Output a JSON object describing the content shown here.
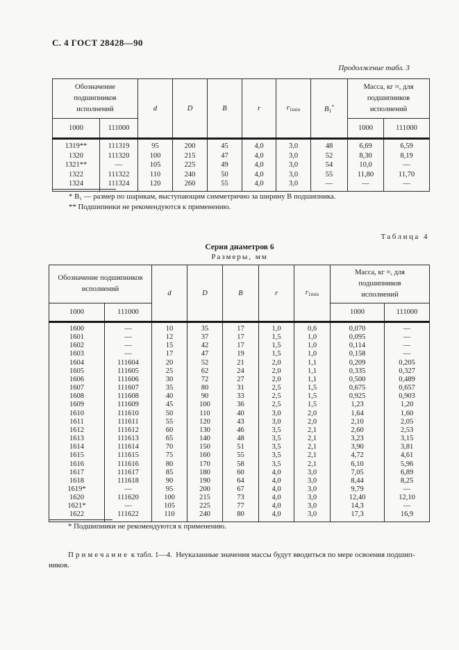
{
  "page": {
    "header": "С. 4 ГОСТ 28428—90"
  },
  "table3": {
    "caption": "Продолжение табл. 3",
    "designation_group": "Обозначение\nподшипников\nисполнений",
    "mass_group": "Масса, кг ≈, для\nподшипников\nисполнений",
    "subcols": [
      "1000",
      "111000"
    ],
    "mass_subcols": [
      "1000",
      "111000"
    ],
    "cols": {
      "d": "d",
      "D": "D",
      "B": "B",
      "r": "r",
      "rmin_base": "r",
      "rmin_sub": "1min",
      "b1_base": "B",
      "b1_sub": "1",
      "b1_sup": "*"
    },
    "rows": [
      [
        "1319**",
        "111319",
        "95",
        "200",
        "45",
        "4,0",
        "3,0",
        "48",
        "6,69",
        "6,59"
      ],
      [
        "1320",
        "111320",
        "100",
        "215",
        "47",
        "4,0",
        "3,0",
        "52",
        "8,30",
        "8,19"
      ],
      [
        "1321**",
        "—",
        "105",
        "225",
        "49",
        "4,0",
        "3,0",
        "54",
        "10,0",
        "—"
      ],
      [
        "1322",
        "111322",
        "110",
        "240",
        "50",
        "4,0",
        "3,0",
        "55",
        "11,80",
        "11,70"
      ],
      [
        "1324",
        "111324",
        "120",
        "260",
        "55",
        "4,0",
        "3,0",
        "—",
        "—",
        "—"
      ]
    ],
    "footnotes": [
      "* B₁ — размер по шарикам, выступающим симметрично за ширину B подшипника.",
      "** Подшипники не рекомендуются к применению."
    ]
  },
  "table4": {
    "label": "Таблица 4",
    "series": "Серия диаметров 6",
    "sizes": "Размеры, мм",
    "designation_group": "Обозначение подшипников\nисполнений",
    "mass_group": "Масса, кг ≈, для\nподшипников\nисполнений",
    "subcols": [
      "1000",
      "111000"
    ],
    "mass_subcols": [
      "1000",
      "111000"
    ],
    "cols": {
      "d": "d",
      "D": "D",
      "B": "B",
      "r": "r",
      "rmin_base": "r",
      "rmin_sub": "1min"
    },
    "rows": [
      [
        "1600",
        "—",
        "10",
        "35",
        "17",
        "1,0",
        "0,6",
        "0,070",
        "—"
      ],
      [
        "1601",
        "—",
        "12",
        "37",
        "17",
        "1,5",
        "1,0",
        "0,095",
        "—"
      ],
      [
        "1602",
        "—",
        "15",
        "42",
        "17",
        "1,5",
        "1,0",
        "0,114",
        "—"
      ],
      [
        "1603",
        "—",
        "17",
        "47",
        "19",
        "1,5",
        "1,0",
        "0,158",
        "—"
      ],
      [
        "1604",
        "111604",
        "20",
        "52",
        "21",
        "2,0",
        "1,1",
        "0,209",
        "0,205"
      ],
      [
        "1605",
        "111605",
        "25",
        "62",
        "24",
        "2,0",
        "1,1",
        "0,335",
        "0,327"
      ],
      [
        "1606",
        "111606",
        "30",
        "72",
        "27",
        "2,0",
        "1,1",
        "0,500",
        "0,489"
      ],
      [
        "1607",
        "111607",
        "35",
        "80",
        "31",
        "2,5",
        "1,5",
        "0,675",
        "0,657"
      ],
      [
        "1608",
        "111608",
        "40",
        "90",
        "33",
        "2,5",
        "1,5",
        "0,925",
        "0,903"
      ],
      [
        "1609",
        "111609",
        "45",
        "100",
        "36",
        "2,5",
        "1,5",
        "1,23",
        "1,20"
      ],
      [
        "1610",
        "111610",
        "50",
        "110",
        "40",
        "3,0",
        "2,0",
        "1,64",
        "1,60"
      ],
      [
        "1611",
        "111611",
        "55",
        "120",
        "43",
        "3,0",
        "2,0",
        "2,10",
        "2,05"
      ],
      [
        "1612",
        "111612",
        "60",
        "130",
        "46",
        "3,5",
        "2,1",
        "2,60",
        "2,53"
      ],
      [
        "1613",
        "111613",
        "65",
        "140",
        "48",
        "3,5",
        "2,1",
        "3,23",
        "3,15"
      ],
      [
        "1614",
        "111614",
        "70",
        "150",
        "51",
        "3,5",
        "2,1",
        "3,90",
        "3,81"
      ],
      [
        "1615",
        "111615",
        "75",
        "160",
        "55",
        "3,5",
        "2,1",
        "4,72",
        "4,61"
      ],
      [
        "1616",
        "111616",
        "80",
        "170",
        "58",
        "3,5",
        "2,1",
        "6,10",
        "5,96"
      ],
      [
        "1617",
        "111617",
        "85",
        "180",
        "60",
        "4,0",
        "3,0",
        "7,05",
        "6,89"
      ],
      [
        "1618",
        "111618",
        "90",
        "190",
        "64",
        "4,0",
        "3,0",
        "8,44",
        "8,25"
      ],
      [
        "1619*",
        "—",
        "95",
        "200",
        "67",
        "4,0",
        "3,0",
        "9,79",
        "—"
      ],
      [
        "1620",
        "111620",
        "100",
        "215",
        "73",
        "4,0",
        "3,0",
        "12,40",
        "12,10"
      ],
      [
        "1621*",
        "—",
        "105",
        "225",
        "77",
        "4,0",
        "3,0",
        "14,3",
        "—"
      ],
      [
        "1622",
        "111622",
        "110",
        "240",
        "80",
        "4,0",
        "3,0",
        "17,3",
        "16,9"
      ]
    ],
    "footnote": "* Подшипники не рекомендуются к применению."
  },
  "note": {
    "label": "Примечание",
    "ref": "к табл. 1—4.",
    "text": "Неуказанные значения массы будут вводиться по мере освоения подшип­ников."
  }
}
